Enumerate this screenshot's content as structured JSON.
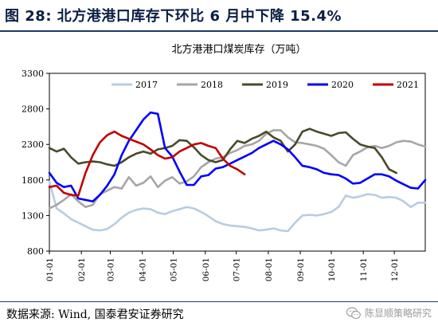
{
  "figure": {
    "title": "图 28:  北方港港口库存下环比 6 月中下降 15.4%",
    "source": "数据来源:  Wind, 国泰君安证券研究",
    "watermark": "陈显顺策略研究",
    "watermark_icon": "wechat-icon"
  },
  "chart_data": {
    "type": "line",
    "title": "北方港港口煤炭库存（万吨）",
    "xlabel": "",
    "ylabel": "",
    "x_tick_labels": [
      "01-01",
      "02-01",
      "03-01",
      "04-01",
      "05-01",
      "06-01",
      "07-01",
      "08-01",
      "09-01",
      "10-01",
      "11-01",
      "12-01"
    ],
    "x_tick_days": [
      1,
      32,
      60,
      91,
      121,
      152,
      182,
      213,
      244,
      274,
      305,
      335
    ],
    "xlim_days": [
      1,
      365
    ],
    "y_ticks": [
      800,
      1300,
      1800,
      2300,
      2800,
      3300
    ],
    "ylim": [
      800,
      3300
    ],
    "grid": false,
    "legend_position": "top-center",
    "series": [
      {
        "name": "2017",
        "color": "#b8cce4",
        "x": [
          1,
          8,
          15,
          22,
          29,
          36,
          43,
          50,
          57,
          64,
          71,
          78,
          85,
          92,
          99,
          106,
          113,
          120,
          127,
          134,
          141,
          148,
          155,
          162,
          169,
          176,
          183,
          190,
          197,
          204,
          211,
          218,
          225,
          232,
          239,
          246,
          253,
          260,
          267,
          274,
          281,
          288,
          295,
          302,
          309,
          316,
          323,
          330,
          337,
          344,
          351,
          358,
          365
        ],
        "y": [
          1780,
          1400,
          1330,
          1250,
          1200,
          1150,
          1100,
          1090,
          1110,
          1180,
          1270,
          1340,
          1380,
          1400,
          1390,
          1340,
          1320,
          1360,
          1390,
          1420,
          1400,
          1350,
          1290,
          1220,
          1180,
          1160,
          1150,
          1140,
          1120,
          1090,
          1100,
          1120,
          1090,
          1080,
          1200,
          1300,
          1310,
          1300,
          1320,
          1350,
          1420,
          1580,
          1550,
          1570,
          1600,
          1590,
          1550,
          1560,
          1550,
          1500,
          1420,
          1480,
          1480
        ]
      },
      {
        "name": "2018",
        "color": "#a6a6a6",
        "x": [
          1,
          8,
          15,
          22,
          29,
          36,
          43,
          50,
          57,
          64,
          71,
          78,
          85,
          92,
          99,
          106,
          113,
          120,
          127,
          134,
          141,
          148,
          155,
          162,
          169,
          176,
          183,
          190,
          197,
          204,
          211,
          218,
          225,
          232,
          239,
          246,
          253,
          260,
          267,
          274,
          281,
          288,
          295,
          302,
          309,
          316,
          323,
          330,
          337,
          344,
          351,
          358,
          365
        ],
        "y": [
          1400,
          1450,
          1520,
          1600,
          1500,
          1420,
          1450,
          1600,
          1650,
          1700,
          1680,
          1840,
          1720,
          1760,
          1850,
          1700,
          1790,
          1840,
          1750,
          1780,
          1850,
          1980,
          2050,
          2100,
          2120,
          2180,
          2220,
          2280,
          2300,
          2350,
          2450,
          2500,
          2500,
          2400,
          2330,
          2320,
          2300,
          2280,
          2240,
          2150,
          2050,
          2000,
          2150,
          2200,
          2260,
          2280,
          2250,
          2280,
          2330,
          2350,
          2340,
          2300,
          2270
        ]
      },
      {
        "name": "2019",
        "color": "#4a4a2a",
        "x": [
          1,
          8,
          15,
          22,
          29,
          36,
          43,
          50,
          57,
          64,
          71,
          78,
          85,
          92,
          99,
          106,
          113,
          120,
          127,
          134,
          141,
          148,
          155,
          162,
          169,
          176,
          183,
          190,
          197,
          204,
          211,
          218,
          225,
          232,
          239,
          246,
          253,
          260,
          267,
          274,
          281,
          288,
          295,
          302,
          309,
          316,
          323,
          330,
          337
        ],
        "y": [
          2250,
          2200,
          2240,
          2120,
          2030,
          2050,
          2060,
          2050,
          2020,
          2000,
          2050,
          2120,
          2170,
          2200,
          2170,
          2230,
          2250,
          2280,
          2360,
          2350,
          2260,
          2150,
          2080,
          2050,
          2080,
          2230,
          2350,
          2320,
          2380,
          2420,
          2480,
          2400,
          2350,
          2200,
          2300,
          2480,
          2520,
          2480,
          2450,
          2420,
          2460,
          2470,
          2380,
          2300,
          2270,
          2250,
          2120,
          1950,
          1900
        ]
      },
      {
        "name": "2020",
        "color": "#0000ff",
        "x": [
          1,
          8,
          15,
          22,
          29,
          36,
          43,
          50,
          57,
          64,
          71,
          78,
          85,
          92,
          99,
          106,
          113,
          120,
          127,
          134,
          141,
          148,
          155,
          162,
          169,
          176,
          183,
          190,
          197,
          204,
          211,
          218,
          225,
          232,
          239,
          246,
          253,
          260,
          267,
          274,
          281,
          288,
          295,
          302,
          309,
          316,
          323,
          330,
          337,
          344,
          351,
          358,
          365
        ],
        "y": [
          1900,
          1760,
          1700,
          1720,
          1540,
          1520,
          1500,
          1590,
          1720,
          1880,
          2150,
          2350,
          2500,
          2650,
          2750,
          2730,
          2250,
          2130,
          1920,
          1730,
          1730,
          1850,
          1870,
          1960,
          1980,
          2030,
          2080,
          2130,
          2180,
          2250,
          2300,
          2350,
          2300,
          2230,
          2120,
          2000,
          1980,
          1950,
          1900,
          1880,
          1870,
          1820,
          1750,
          1760,
          1820,
          1880,
          1880,
          1850,
          1790,
          1740,
          1690,
          1680,
          1800
        ]
      },
      {
        "name": "2021",
        "color": "#c00000",
        "x": [
          1,
          8,
          15,
          22,
          29,
          36,
          43,
          50,
          57,
          64,
          71,
          78,
          85,
          92,
          99,
          106,
          113,
          120,
          127,
          134,
          141,
          148,
          155,
          162,
          169,
          176,
          183,
          190
        ],
        "y": [
          1700,
          1720,
          1620,
          1590,
          1580,
          1900,
          2150,
          2330,
          2430,
          2480,
          2420,
          2380,
          2340,
          2300,
          2230,
          2150,
          2100,
          2120,
          2200,
          2250,
          2300,
          2320,
          2280,
          2250,
          2100,
          2000,
          1950,
          1880
        ]
      }
    ]
  }
}
